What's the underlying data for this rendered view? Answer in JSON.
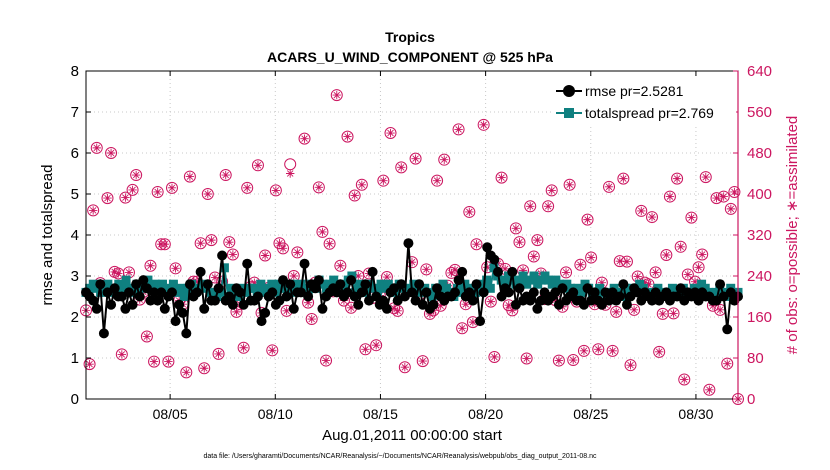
{
  "chart_data": {
    "type": "line",
    "title": "Tropics",
    "subtitle": "ACARS_U_WIND_COMPONENT @ 525 hPa",
    "xlabel": "Aug.01,2011 00:00:00 start",
    "ylabel_left": "rmse and totalspread",
    "ylabel_right": "# of obs: o=possible; ∗=assimilated",
    "footnote": "data file: /Users/gharamti/Documents/NCAR/Reanalysis/~/Documents/NCAR/Reanalysis/webpub/obs_diag_output_2011-08.nc",
    "xlim": [
      1,
      32
    ],
    "ylim_left": [
      0,
      8
    ],
    "ylim_right": [
      0,
      640
    ],
    "x_ticks": [
      5,
      10,
      15,
      20,
      25,
      30
    ],
    "x_tick_labels": [
      "08/05",
      "08/10",
      "08/15",
      "08/20",
      "08/25",
      "08/30"
    ],
    "y_ticks_left": [
      0,
      1,
      2,
      3,
      4,
      5,
      6,
      7,
      8
    ],
    "y_ticks_right": [
      0,
      80,
      160,
      240,
      320,
      400,
      480,
      560,
      640
    ],
    "legend_location": "top-right",
    "colors": {
      "rmse": "#000000",
      "totalspread": "#0f8080",
      "obs": "#cc1660",
      "axis": "#000000"
    },
    "series": [
      {
        "name": "rmse",
        "legend_label": "rmse pr=2.5281",
        "values": [
          2.6,
          2.5,
          2.4,
          2.2,
          2.8,
          1.6,
          2.6,
          2.3,
          2.7,
          2.5,
          2.5,
          2.2,
          2.6,
          2.3,
          2.8,
          2.5,
          2.9,
          2.7,
          2.4,
          2.6,
          2.4,
          2.6,
          2.2,
          2.5,
          2.6,
          1.9,
          2.3,
          2.1,
          1.6,
          2.8,
          2.5,
          2.6,
          3.1,
          2.2,
          2.8,
          2.4,
          2.4,
          2.7,
          3.5,
          2.4,
          2.5,
          2.3,
          2.7,
          2.6,
          2.3,
          3.3,
          2.4,
          2.4,
          2.5,
          1.9,
          2.1,
          2.5,
          2.6,
          2.3,
          2.4,
          2.9,
          2.5,
          2.8,
          2.2,
          2.6,
          2.6,
          3.3,
          2.5,
          2.8,
          2.7,
          2.9,
          2.2,
          2.5,
          2.6,
          2.7,
          2.6,
          2.8,
          2.5,
          2.6,
          2.9,
          2.5,
          2.3,
          2.6,
          2.8,
          2.4,
          3.1,
          2.5,
          2.3,
          2.4,
          2.2,
          2.6,
          2.7,
          2.4,
          2.8,
          2.5,
          3.8,
          2.6,
          2.4,
          2.8,
          2.3,
          2.6,
          2.2,
          2.3,
          2.7,
          2.5,
          2.4,
          2.5,
          2.5,
          2.6,
          2.9,
          3.1,
          2.5,
          2.6,
          2.4,
          2.8,
          1.9,
          2.6,
          3.7,
          3.5,
          3.4,
          3.1,
          2.5,
          2.7,
          2.6,
          3.1,
          2.3,
          2.7,
          2.4,
          2.5,
          2.4,
          2.6,
          2.2,
          2.4,
          2.6,
          2.4,
          2.5,
          2.6,
          2.3,
          2.7,
          2.4,
          2.5,
          2.6,
          2.4,
          2.4,
          2.3,
          2.7,
          2.4,
          2.6,
          2.4,
          2.3,
          2.6,
          2.4,
          2.6,
          2.4,
          2.5,
          2.8,
          2.3,
          2.5,
          2.7,
          2.6,
          2.4,
          2.6,
          2.5,
          2.4,
          2.6,
          2.4,
          2.5,
          2.6,
          2.4,
          2.5,
          2.5,
          2.7,
          2.4,
          2.6,
          2.5,
          2.6,
          2.4,
          2.6,
          2.5,
          2.5,
          2.4,
          2.4,
          2.8,
          2.5,
          1.7,
          2.6,
          2.4,
          2.5
        ]
      },
      {
        "name": "totalspread",
        "legend_label": "totalspread pr=2.769",
        "values": [
          2.6,
          2.7,
          2.8,
          2.7,
          2.6,
          2.7,
          2.8,
          2.6,
          2.7,
          2.8,
          2.7,
          2.9,
          2.7,
          2.6,
          2.8,
          2.7,
          2.8,
          2.9,
          2.7,
          2.8,
          2.7,
          2.8,
          2.6,
          2.7,
          2.8,
          2.6,
          2.7,
          2.5,
          2.7,
          2.8,
          2.6,
          2.7,
          2.8,
          2.7,
          2.6,
          2.6,
          2.5,
          2.6,
          3.2,
          2.5,
          2.7,
          2.6,
          2.5,
          2.7,
          2.6,
          2.7,
          2.7,
          2.6,
          2.8,
          2.6,
          2.7,
          2.8,
          2.6,
          2.8,
          2.7,
          2.7,
          2.6,
          2.8,
          2.7,
          2.8,
          2.7,
          2.6,
          2.8,
          2.7,
          2.9,
          2.8,
          2.7,
          2.8,
          2.9,
          2.7,
          2.6,
          2.8,
          2.9,
          3.0,
          2.6,
          2.8,
          2.7,
          2.6,
          2.8,
          2.7,
          2.6,
          2.8,
          2.7,
          2.8,
          2.7,
          2.6,
          2.8,
          2.7,
          2.6,
          2.7,
          2.8,
          2.7,
          2.6,
          2.7,
          2.6,
          2.5,
          2.7,
          2.6,
          2.8,
          2.7,
          2.6,
          2.5,
          2.7,
          2.6,
          2.8,
          2.7,
          2.5,
          2.6,
          2.8,
          2.7,
          2.9,
          2.7,
          3.2,
          3.0,
          2.9,
          2.8,
          3.0,
          2.9,
          2.8,
          2.9,
          3.0,
          2.8,
          2.9,
          3.0,
          2.8,
          2.9,
          3.0,
          2.9,
          2.8,
          2.9,
          2.8,
          2.7,
          2.8,
          2.7,
          2.6,
          2.7,
          2.6,
          2.8,
          2.7,
          2.6,
          2.5,
          2.7,
          2.6,
          2.5,
          2.6,
          2.7,
          2.6,
          2.5,
          2.7,
          2.6,
          2.7,
          2.6,
          2.8,
          2.7,
          2.6,
          2.5,
          2.6,
          2.7,
          2.6,
          2.5,
          2.6,
          2.7,
          2.5,
          2.6,
          2.7,
          2.6,
          2.5,
          2.7,
          2.6,
          2.8,
          2.7,
          2.6,
          2.5,
          2.6,
          2.7,
          2.6,
          2.5,
          2.7,
          2.6,
          2.6
        ]
      }
    ],
    "obs_possible": [
      173,
      68,
      368,
      490,
      226,
      214,
      392,
      480,
      248,
      245,
      87,
      393,
      247,
      408,
      437,
      194,
      209,
      122,
      260,
      73,
      404,
      302,
      302,
      73,
      412,
      255,
      192,
      185,
      52,
      434,
      229,
      229,
      304,
      60,
      400,
      310,
      237,
      88,
      229,
      437,
      306,
      282,
      170,
      185,
      100,
      412,
      219,
      227,
      456,
      168,
      280,
      217,
      95,
      407,
      304,
      294,
      172,
      458,
      240,
      286,
      215,
      508,
      188,
      156,
      227,
      413,
      326,
      75,
      303,
      210,
      593,
      260,
      192,
      512,
      178,
      397,
      240,
      418,
      97,
      245,
      197,
      105,
      202,
      426,
      238,
      519,
      177,
      172,
      452,
      62,
      210,
      267,
      469,
      203,
      74,
      253,
      166,
      173,
      426,
      182,
      467,
      221,
      246,
      252,
      526,
      138,
      185,
      365,
      150,
      302,
      217,
      535,
      257,
      190,
      82,
      264,
      432,
      254,
      183,
      173,
      333,
      306,
      251,
      79,
      376,
      278,
      310,
      245,
      195,
      376,
      407,
      193,
      75,
      180,
      247,
      418,
      76,
      190,
      262,
      94,
      350,
      276,
      185,
      97,
      227,
      184,
      414,
      94,
      170,
      269,
      430,
      268,
      66,
      174,
      239,
      367,
      227,
      224,
      355,
      247,
      92,
      166,
      281,
      395,
      167,
      430,
      297,
      38,
      243,
      354,
      229,
      257,
      282,
      433,
      18,
      182,
      392,
      174,
      395,
      69,
      371,
      404,
      0
    ],
    "obs_assimilated": [
      173,
      68,
      368,
      490,
      226,
      214,
      392,
      480,
      248,
      245,
      87,
      393,
      247,
      408,
      437,
      194,
      209,
      122,
      260,
      73,
      404,
      302,
      302,
      73,
      412,
      255,
      192,
      185,
      52,
      434,
      229,
      229,
      304,
      60,
      400,
      310,
      237,
      88,
      229,
      437,
      306,
      282,
      170,
      185,
      100,
      412,
      219,
      227,
      456,
      168,
      280,
      217,
      95,
      407,
      304,
      294,
      172,
      440,
      240,
      286,
      215,
      508,
      188,
      156,
      227,
      413,
      326,
      75,
      303,
      210,
      593,
      260,
      192,
      512,
      178,
      397,
      240,
      418,
      97,
      245,
      197,
      105,
      202,
      426,
      238,
      519,
      177,
      172,
      452,
      62,
      210,
      267,
      469,
      203,
      74,
      253,
      166,
      173,
      426,
      182,
      467,
      221,
      246,
      252,
      526,
      138,
      185,
      365,
      150,
      302,
      217,
      535,
      257,
      190,
      82,
      264,
      432,
      254,
      183,
      173,
      333,
      306,
      251,
      79,
      376,
      278,
      310,
      245,
      195,
      376,
      407,
      193,
      75,
      180,
      247,
      418,
      76,
      190,
      262,
      94,
      350,
      276,
      185,
      97,
      227,
      184,
      414,
      94,
      170,
      269,
      430,
      268,
      66,
      174,
      239,
      367,
      227,
      224,
      355,
      247,
      92,
      166,
      281,
      395,
      167,
      430,
      297,
      38,
      243,
      354,
      229,
      257,
      282,
      433,
      18,
      182,
      392,
      174,
      395,
      69,
      371,
      404,
      0
    ]
  }
}
